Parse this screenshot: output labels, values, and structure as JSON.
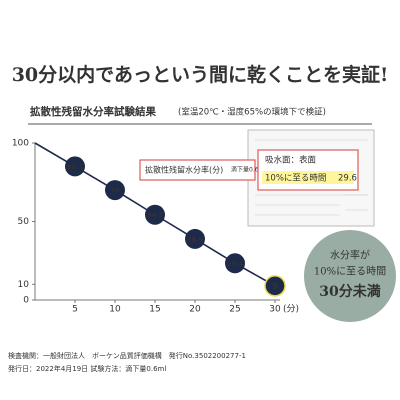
{
  "chart_data": {
    "type": "line",
    "title": "30分以内であっという間に乾くことを実証!",
    "subtitle": "拡散性残留水分率試験結果",
    "subtitle_note": "(室温20℃・湿度65%の環境下で検証)",
    "x_label": "(分)",
    "x": [
      0,
      5,
      10,
      15,
      20,
      25,
      30
    ],
    "series": [
      {
        "name": "拡散性残留水分率(分)",
        "color": "#1e2a4a",
        "values": [
          100,
          85.1,
          70,
          54.3,
          38.9,
          23.4,
          9
        ]
      }
    ],
    "xlim": [
      0,
      30
    ],
    "xticks": [
      5,
      10,
      15,
      20,
      25,
      30
    ],
    "ylim": [
      0,
      100
    ],
    "yticks": [
      0,
      10,
      50,
      100
    ],
    "inset": {
      "legend": "拡散性残留水分率(分)",
      "drop": "滴下量0.6mL",
      "surface": "吸水面：表面",
      "time_label": "10%に至る時間",
      "time_value": "29.6"
    },
    "badge": [
      "水分率が",
      "10%に至る時間",
      "30分未満"
    ],
    "footer": [
      "検査機関：一般財団法人　ボーケン品質評価機構　発行No.3502200277-1",
      "発行日：2022年4月19日 試験方法：滴下量0.6ml"
    ]
  }
}
